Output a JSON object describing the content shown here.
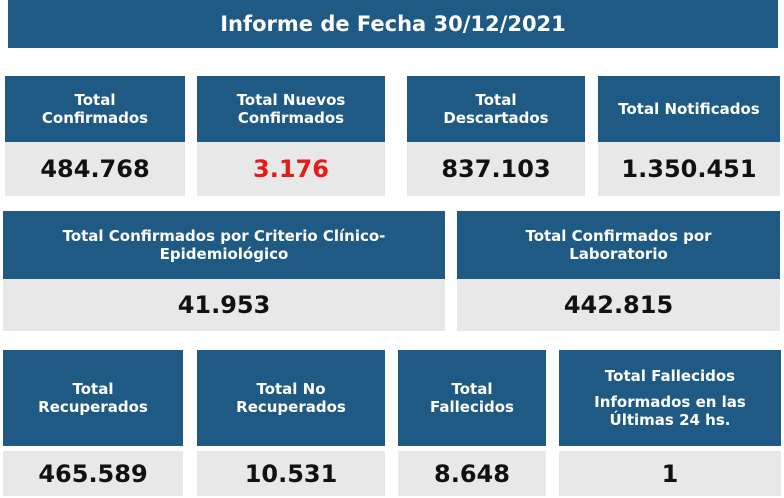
{
  "title": "Informe de Fecha 30/12/2021",
  "row1": [
    {
      "label_1": "Total",
      "label_2": "Confirmados",
      "value": "484.768"
    },
    {
      "label_1": "Total Nuevos",
      "label_2": "Confirmados",
      "value": "3.176"
    },
    {
      "label_1": "Total",
      "label_2": "Descartados",
      "value": "837.103"
    },
    {
      "label_1": "Total Notificados",
      "value": "1.350.451"
    }
  ],
  "row2": [
    {
      "label_1": "Total Confirmados por Criterio Clínico-",
      "label_2": "Epidemiológico",
      "value": "41.953"
    },
    {
      "label_1": "Total Confirmados por",
      "label_2": "Laboratorio",
      "value": "442.815"
    }
  ],
  "row3": [
    {
      "label_1": "Total",
      "label_2": "Recuperados",
      "value": "465.589"
    },
    {
      "label_1": "Total No",
      "label_2": "Recuperados",
      "value": "10.531"
    },
    {
      "label_1": "Total",
      "label_2": "Fallecidos",
      "value": "8.648"
    },
    {
      "label_1": "Total Fallecidos",
      "label_2": "Informados en las",
      "label_3": "Últimas 24 hs.",
      "value": "1"
    }
  ],
  "colors": {
    "header_bg": "#1f5a84",
    "value_bg": "#e8e8e8",
    "highlight": "#e41b17"
  }
}
